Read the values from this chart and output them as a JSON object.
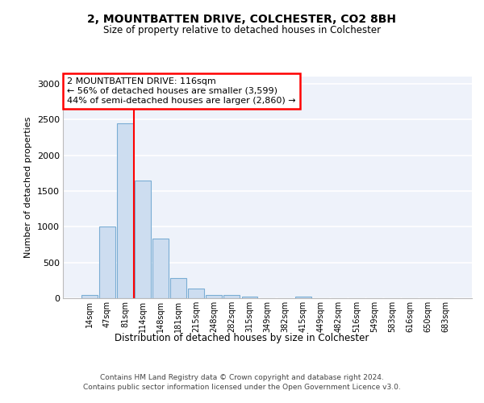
{
  "title": "2, MOUNTBATTEN DRIVE, COLCHESTER, CO2 8BH",
  "subtitle": "Size of property relative to detached houses in Colchester",
  "xlabel": "Distribution of detached houses by size in Colchester",
  "ylabel": "Number of detached properties",
  "categories": [
    "14sqm",
    "47sqm",
    "81sqm",
    "114sqm",
    "148sqm",
    "181sqm",
    "215sqm",
    "248sqm",
    "282sqm",
    "315sqm",
    "349sqm",
    "382sqm",
    "415sqm",
    "449sqm",
    "482sqm",
    "516sqm",
    "549sqm",
    "583sqm",
    "616sqm",
    "650sqm",
    "683sqm"
  ],
  "values": [
    50,
    1000,
    2450,
    1650,
    830,
    280,
    130,
    40,
    40,
    25,
    0,
    0,
    20,
    0,
    0,
    0,
    0,
    0,
    0,
    0,
    0
  ],
  "bar_color": "#cdddf0",
  "bar_edge_color": "#7aadd4",
  "red_line_x": 2.5,
  "annotation_text": "2 MOUNTBATTEN DRIVE: 116sqm\n← 56% of detached houses are smaller (3,599)\n44% of semi-detached houses are larger (2,860) →",
  "ylim": [
    0,
    3100
  ],
  "yticks": [
    0,
    500,
    1000,
    1500,
    2000,
    2500,
    3000
  ],
  "background_color": "#eef2fa",
  "grid_color": "#ffffff",
  "footer_line1": "Contains HM Land Registry data © Crown copyright and database right 2024.",
  "footer_line2": "Contains public sector information licensed under the Open Government Licence v3.0."
}
